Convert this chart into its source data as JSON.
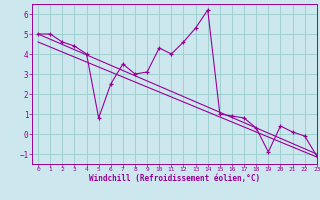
{
  "xlabel": "Windchill (Refroidissement éolien,°C)",
  "bg_color": "#cce8ee",
  "line_color": "#990099",
  "grid_color": "#99cccc",
  "data_x": [
    0,
    1,
    2,
    3,
    4,
    5,
    6,
    7,
    8,
    9,
    10,
    11,
    12,
    13,
    14,
    15,
    16,
    17,
    18,
    19,
    20,
    21,
    22,
    23
  ],
  "data_y": [
    5.0,
    5.0,
    4.6,
    4.4,
    4.0,
    0.8,
    2.5,
    3.5,
    3.0,
    3.1,
    4.3,
    4.0,
    4.6,
    5.3,
    6.2,
    1.0,
    0.9,
    0.8,
    0.3,
    -0.9,
    0.4,
    0.1,
    -0.1,
    -1.1
  ],
  "trend1_x": [
    0,
    23
  ],
  "trend1_y": [
    5.0,
    -1.0
  ],
  "trend2_x": [
    0,
    23
  ],
  "trend2_y": [
    4.6,
    -1.15
  ],
  "xlim": [
    -0.5,
    23
  ],
  "ylim": [
    -1.5,
    6.5
  ],
  "yticks": [
    -1,
    0,
    1,
    2,
    3,
    4,
    5,
    6
  ],
  "xticks": [
    0,
    1,
    2,
    3,
    4,
    5,
    6,
    7,
    8,
    9,
    10,
    11,
    12,
    13,
    14,
    15,
    16,
    17,
    18,
    19,
    20,
    21,
    22,
    23
  ]
}
